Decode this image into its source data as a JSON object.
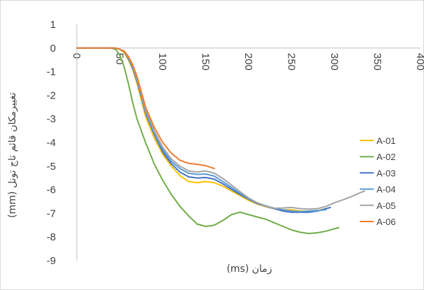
{
  "chart_data": {
    "type": "line",
    "xlabel": "زمان (ms)",
    "ylabel": "تغییرمکان قائم تاج تونل (mm)",
    "xlim": [
      0,
      400
    ],
    "ylim": [
      -9,
      1
    ],
    "x_ticks": [
      0,
      50,
      100,
      150,
      200,
      250,
      300,
      350,
      400
    ],
    "y_ticks": [
      1,
      0,
      -1,
      -2,
      -3,
      -4,
      -5,
      -6,
      -7,
      -8,
      -9
    ],
    "grid": false,
    "legend_position": "right",
    "series": [
      {
        "name": "A-01",
        "color": "#ffc000",
        "points": [
          [
            0,
            0
          ],
          [
            45,
            0
          ],
          [
            50,
            -0.05
          ],
          [
            55,
            -0.2
          ],
          [
            60,
            -0.5
          ],
          [
            65,
            -0.9
          ],
          [
            70,
            -1.5
          ],
          [
            75,
            -2.2
          ],
          [
            80,
            -2.9
          ],
          [
            90,
            -3.8
          ],
          [
            100,
            -4.5
          ],
          [
            110,
            -5.0
          ],
          [
            120,
            -5.4
          ],
          [
            130,
            -5.65
          ],
          [
            140,
            -5.7
          ],
          [
            150,
            -5.65
          ],
          [
            160,
            -5.7
          ],
          [
            170,
            -5.85
          ],
          [
            180,
            -6.05
          ],
          [
            190,
            -6.25
          ],
          [
            200,
            -6.45
          ],
          [
            210,
            -6.6
          ],
          [
            220,
            -6.72
          ],
          [
            230,
            -6.8
          ],
          [
            240,
            -6.85
          ],
          [
            250,
            -6.85
          ],
          [
            260,
            -6.9
          ],
          [
            270,
            -6.9
          ],
          [
            280,
            -6.88
          ],
          [
            290,
            -6.8
          ]
        ]
      },
      {
        "name": "A-02",
        "color": "#70ad47",
        "points": [
          [
            0,
            0
          ],
          [
            40,
            0
          ],
          [
            45,
            -0.05
          ],
          [
            50,
            -0.3
          ],
          [
            55,
            -0.8
          ],
          [
            60,
            -1.5
          ],
          [
            65,
            -2.3
          ],
          [
            70,
            -3.0
          ],
          [
            80,
            -4.0
          ],
          [
            90,
            -4.9
          ],
          [
            100,
            -5.6
          ],
          [
            110,
            -6.2
          ],
          [
            120,
            -6.7
          ],
          [
            130,
            -7.1
          ],
          [
            140,
            -7.45
          ],
          [
            150,
            -7.55
          ],
          [
            160,
            -7.5
          ],
          [
            170,
            -7.3
          ],
          [
            180,
            -7.05
          ],
          [
            190,
            -6.95
          ],
          [
            200,
            -7.05
          ],
          [
            210,
            -7.15
          ],
          [
            220,
            -7.25
          ],
          [
            230,
            -7.4
          ],
          [
            240,
            -7.55
          ],
          [
            250,
            -7.7
          ],
          [
            260,
            -7.8
          ],
          [
            270,
            -7.85
          ],
          [
            280,
            -7.82
          ],
          [
            290,
            -7.75
          ],
          [
            300,
            -7.65
          ],
          [
            305,
            -7.6
          ]
        ]
      },
      {
        "name": "A-03",
        "color": "#4472c4",
        "points": [
          [
            0,
            0
          ],
          [
            45,
            0
          ],
          [
            50,
            -0.05
          ],
          [
            55,
            -0.15
          ],
          [
            60,
            -0.45
          ],
          [
            65,
            -0.85
          ],
          [
            70,
            -1.4
          ],
          [
            75,
            -2.05
          ],
          [
            80,
            -2.75
          ],
          [
            90,
            -3.65
          ],
          [
            100,
            -4.4
          ],
          [
            110,
            -4.9
          ],
          [
            120,
            -5.25
          ],
          [
            130,
            -5.45
          ],
          [
            140,
            -5.5
          ],
          [
            150,
            -5.48
          ],
          [
            160,
            -5.55
          ],
          [
            170,
            -5.75
          ],
          [
            180,
            -5.98
          ],
          [
            190,
            -6.2
          ],
          [
            200,
            -6.4
          ],
          [
            210,
            -6.58
          ],
          [
            220,
            -6.7
          ],
          [
            230,
            -6.8
          ],
          [
            240,
            -6.9
          ],
          [
            250,
            -6.95
          ],
          [
            260,
            -6.95
          ],
          [
            270,
            -6.95
          ],
          [
            280,
            -6.9
          ],
          [
            290,
            -6.8
          ],
          [
            295,
            -6.75
          ]
        ]
      },
      {
        "name": "A-04",
        "color": "#5b9bd5",
        "points": [
          [
            0,
            0
          ],
          [
            45,
            0
          ],
          [
            50,
            -0.05
          ],
          [
            55,
            -0.15
          ],
          [
            60,
            -0.4
          ],
          [
            65,
            -0.8
          ],
          [
            70,
            -1.35
          ],
          [
            75,
            -2.0
          ],
          [
            80,
            -2.7
          ],
          [
            90,
            -3.6
          ],
          [
            100,
            -4.3
          ],
          [
            110,
            -4.8
          ],
          [
            120,
            -5.1
          ],
          [
            130,
            -5.3
          ],
          [
            140,
            -5.35
          ],
          [
            150,
            -5.33
          ],
          [
            160,
            -5.42
          ],
          [
            170,
            -5.65
          ],
          [
            180,
            -5.9
          ],
          [
            190,
            -6.15
          ],
          [
            200,
            -6.38
          ],
          [
            210,
            -6.55
          ],
          [
            220,
            -6.68
          ],
          [
            230,
            -6.78
          ],
          [
            240,
            -6.85
          ],
          [
            250,
            -6.9
          ],
          [
            260,
            -6.92
          ],
          [
            270,
            -6.9
          ],
          [
            280,
            -6.88
          ],
          [
            290,
            -6.85
          ]
        ]
      },
      {
        "name": "A-05",
        "color": "#a5a5a5",
        "points": [
          [
            0,
            0
          ],
          [
            45,
            0
          ],
          [
            50,
            -0.05
          ],
          [
            55,
            -0.15
          ],
          [
            60,
            -0.4
          ],
          [
            65,
            -0.75
          ],
          [
            70,
            -1.3
          ],
          [
            75,
            -1.95
          ],
          [
            80,
            -2.6
          ],
          [
            90,
            -3.5
          ],
          [
            100,
            -4.2
          ],
          [
            110,
            -4.7
          ],
          [
            120,
            -5.0
          ],
          [
            130,
            -5.2
          ],
          [
            140,
            -5.25
          ],
          [
            150,
            -5.2
          ],
          [
            160,
            -5.3
          ],
          [
            170,
            -5.52
          ],
          [
            180,
            -5.8
          ],
          [
            190,
            -6.08
          ],
          [
            200,
            -6.35
          ],
          [
            210,
            -6.55
          ],
          [
            220,
            -6.7
          ],
          [
            230,
            -6.78
          ],
          [
            240,
            -6.77
          ],
          [
            250,
            -6.75
          ],
          [
            260,
            -6.8
          ],
          [
            270,
            -6.82
          ],
          [
            280,
            -6.8
          ],
          [
            290,
            -6.7
          ],
          [
            300,
            -6.55
          ],
          [
            310,
            -6.42
          ],
          [
            320,
            -6.28
          ],
          [
            330,
            -6.12
          ],
          [
            335,
            -6.05
          ]
        ]
      },
      {
        "name": "A-06",
        "color": "#ed7d31",
        "points": [
          [
            0,
            0
          ],
          [
            45,
            0
          ],
          [
            50,
            -0.05
          ],
          [
            55,
            -0.12
          ],
          [
            60,
            -0.35
          ],
          [
            65,
            -0.7
          ],
          [
            70,
            -1.2
          ],
          [
            75,
            -1.85
          ],
          [
            80,
            -2.5
          ],
          [
            90,
            -3.35
          ],
          [
            100,
            -4.0
          ],
          [
            110,
            -4.45
          ],
          [
            120,
            -4.75
          ],
          [
            130,
            -4.88
          ],
          [
            140,
            -4.92
          ],
          [
            150,
            -4.98
          ],
          [
            160,
            -5.1
          ]
        ]
      }
    ]
  }
}
